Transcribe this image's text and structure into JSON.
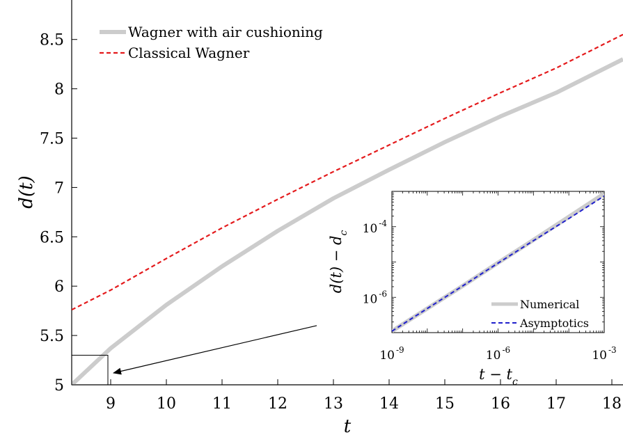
{
  "chart_data": [
    {
      "type": "line",
      "xlabel": "t",
      "ylabel": "d(t)",
      "xlim": [
        8.3,
        18.2
      ],
      "ylim": [
        5,
        8.9
      ],
      "xticks": [
        9,
        10,
        11,
        12,
        13,
        14,
        15,
        16,
        17,
        18
      ],
      "xtick_labels": [
        "9",
        "10",
        "11",
        "12",
        "13",
        "14",
        "15",
        "16",
        "17",
        "18"
      ],
      "yticks": [
        5,
        5.5,
        6,
        6.5,
        7,
        7.5,
        8,
        8.5
      ],
      "ytick_labels": [
        "5",
        "5.5",
        "6",
        "6.5",
        "7",
        "7.5",
        "8",
        "8.5"
      ],
      "legend_position": "top-left",
      "grid": false,
      "series": [
        {
          "name": "Wagner with air cushioning",
          "color": "#cccccc",
          "style": "solid-thick",
          "x": [
            8.3,
            9.0,
            10.0,
            11.0,
            12.0,
            13.0,
            14.0,
            15.0,
            16.0,
            17.0,
            18.2
          ],
          "y": [
            5.0,
            5.37,
            5.81,
            6.2,
            6.56,
            6.89,
            7.18,
            7.46,
            7.72,
            7.96,
            8.3
          ]
        },
        {
          "name": "Classical Wagner",
          "color": "#e41a1c",
          "style": "dashed",
          "x": [
            8.3,
            9.0,
            10.0,
            11.0,
            12.0,
            13.0,
            14.0,
            15.0,
            16.0,
            17.0,
            18.2
          ],
          "y": [
            5.76,
            5.96,
            6.28,
            6.59,
            6.88,
            7.16,
            7.43,
            7.7,
            7.96,
            8.21,
            8.55
          ]
        }
      ],
      "annotations": [
        {
          "type": "zoom-box",
          "x": [
            8.3,
            8.95
          ],
          "y": [
            5.0,
            5.3
          ]
        },
        {
          "type": "arrow",
          "from": [
            12.7,
            5.6
          ],
          "to": [
            9.05,
            5.12
          ]
        }
      ]
    },
    {
      "type": "line",
      "xlabel": "t − t_c",
      "ylabel": "d(t) − d_c",
      "xscale": "log",
      "yscale": "log",
      "xlim": [
        1e-09,
        0.001
      ],
      "ylim": [
        1e-07,
        0.001
      ],
      "xticks": [
        1e-09,
        1e-06,
        0.001
      ],
      "yticks": [
        1e-06,
        0.0001
      ],
      "xtick_bases": [
        "10",
        "10",
        "10"
      ],
      "xtick_exponents": [
        "-9",
        "-6",
        "-3"
      ],
      "ytick_bases": [
        "10",
        "10"
      ],
      "ytick_exponents": [
        "-6",
        "-4"
      ],
      "legend_position": "bottom-right",
      "series": [
        {
          "name": "Numerical",
          "color": "#cccccc",
          "style": "solid-thick",
          "x": [
            1e-09,
            1e-08,
            1e-07,
            1e-06,
            1e-05,
            0.0001,
            0.001
          ],
          "y": [
            1.1e-07,
            4.8e-07,
            2.1e-06,
            9.5e-06,
            4.2e-05,
            0.00019,
            0.00086
          ]
        },
        {
          "name": "Asymptotics",
          "color": "#1f1fcc",
          "style": "dashed",
          "x": [
            1e-09,
            1e-08,
            1e-07,
            1e-06,
            1e-05,
            0.0001,
            0.001
          ],
          "y": [
            1.1e-07,
            4.8e-07,
            2.1e-06,
            9.3e-06,
            4e-05,
            0.00017,
            0.00074
          ]
        }
      ]
    }
  ]
}
